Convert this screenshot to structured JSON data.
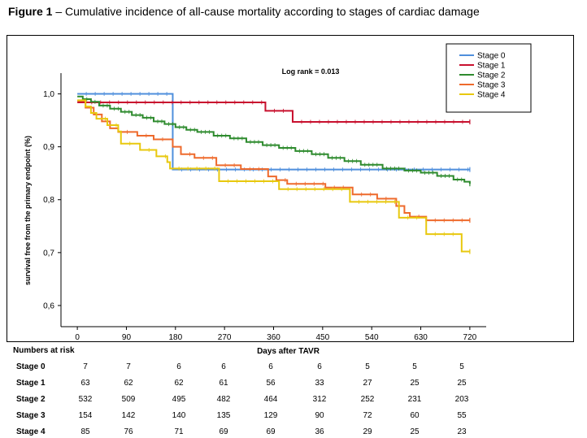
{
  "figure": {
    "label": "Figure 1",
    "caption": " – Cumulative incidence of all-cause mortality according to stages of cardiac damage"
  },
  "chart_data": {
    "type": "line",
    "title": "Log rank = 0.013",
    "xlabel": "Days after TAVR",
    "ylabel": "survival free from the primary endpoint (%)",
    "xlim": [
      -30,
      750
    ],
    "ylim": [
      0.56,
      1.03
    ],
    "x_ticks": [
      0,
      90,
      180,
      270,
      360,
      450,
      540,
      630,
      720
    ],
    "y_ticks": [
      0.6,
      0.7,
      0.8,
      0.9,
      1.0
    ],
    "y_tick_labels": [
      "0,6",
      "0,7",
      "0,8",
      "0,9",
      "1,0"
    ],
    "legend_position": "top-right",
    "series": [
      {
        "name": "Stage 0",
        "color": "#4f8fdc",
        "points": [
          [
            0,
            1.0
          ],
          [
            175,
            1.0
          ],
          [
            175,
            0.857
          ],
          [
            720,
            0.857
          ]
        ]
      },
      {
        "name": "Stage 1",
        "color": "#c8102e",
        "points": [
          [
            0,
            0.984
          ],
          [
            10,
            0.984
          ],
          [
            10,
            0.984
          ],
          [
            345,
            0.984
          ],
          [
            345,
            0.968
          ],
          [
            395,
            0.968
          ],
          [
            395,
            0.947
          ],
          [
            720,
            0.947
          ]
        ]
      },
      {
        "name": "Stage 2",
        "color": "#2e8b2e",
        "points": [
          [
            0,
            0.995
          ],
          [
            10,
            0.99
          ],
          [
            25,
            0.985
          ],
          [
            40,
            0.978
          ],
          [
            60,
            0.972
          ],
          [
            80,
            0.966
          ],
          [
            100,
            0.96
          ],
          [
            120,
            0.955
          ],
          [
            140,
            0.948
          ],
          [
            160,
            0.943
          ],
          [
            180,
            0.937
          ],
          [
            200,
            0.932
          ],
          [
            220,
            0.928
          ],
          [
            250,
            0.921
          ],
          [
            280,
            0.916
          ],
          [
            310,
            0.909
          ],
          [
            340,
            0.903
          ],
          [
            370,
            0.898
          ],
          [
            400,
            0.892
          ],
          [
            430,
            0.886
          ],
          [
            460,
            0.879
          ],
          [
            490,
            0.873
          ],
          [
            520,
            0.866
          ],
          [
            560,
            0.859
          ],
          [
            600,
            0.855
          ],
          [
            630,
            0.851
          ],
          [
            660,
            0.845
          ],
          [
            690,
            0.838
          ],
          [
            710,
            0.834
          ],
          [
            720,
            0.83
          ]
        ]
      },
      {
        "name": "Stage 3",
        "color": "#ee6a2c",
        "points": [
          [
            0,
            0.987
          ],
          [
            15,
            0.974
          ],
          [
            30,
            0.961
          ],
          [
            45,
            0.948
          ],
          [
            60,
            0.935
          ],
          [
            75,
            0.928
          ],
          [
            110,
            0.921
          ],
          [
            140,
            0.914
          ],
          [
            175,
            0.9
          ],
          [
            190,
            0.886
          ],
          [
            215,
            0.879
          ],
          [
            255,
            0.865
          ],
          [
            300,
            0.858
          ],
          [
            350,
            0.844
          ],
          [
            365,
            0.837
          ],
          [
            385,
            0.83
          ],
          [
            455,
            0.823
          ],
          [
            505,
            0.81
          ],
          [
            550,
            0.802
          ],
          [
            585,
            0.788
          ],
          [
            600,
            0.775
          ],
          [
            610,
            0.768
          ],
          [
            640,
            0.761
          ],
          [
            720,
            0.761
          ]
        ]
      },
      {
        "name": "Stage 4",
        "color": "#e8c80e",
        "points": [
          [
            0,
            0.988
          ],
          [
            15,
            0.976
          ],
          [
            25,
            0.964
          ],
          [
            35,
            0.953
          ],
          [
            55,
            0.941
          ],
          [
            75,
            0.929
          ],
          [
            80,
            0.906
          ],
          [
            115,
            0.894
          ],
          [
            145,
            0.882
          ],
          [
            165,
            0.871
          ],
          [
            170,
            0.859
          ],
          [
            260,
            0.859
          ],
          [
            260,
            0.835
          ],
          [
            370,
            0.835
          ],
          [
            370,
            0.82
          ],
          [
            500,
            0.82
          ],
          [
            500,
            0.796
          ],
          [
            590,
            0.796
          ],
          [
            590,
            0.766
          ],
          [
            640,
            0.766
          ],
          [
            640,
            0.735
          ],
          [
            705,
            0.735
          ],
          [
            705,
            0.702
          ],
          [
            720,
            0.702
          ]
        ]
      }
    ]
  },
  "risk_table": {
    "heading": "Numbers at risk",
    "timepoints": [
      "0",
      "90",
      "180",
      "270",
      "360",
      "450",
      "540",
      "630",
      "720"
    ],
    "rows": [
      {
        "label": "Stage 0",
        "values": [
          "7",
          "7",
          "6",
          "6",
          "6",
          "6",
          "5",
          "5",
          "5"
        ]
      },
      {
        "label": "Stage 1",
        "values": [
          "63",
          "62",
          "62",
          "61",
          "56",
          "33",
          "27",
          "25",
          "25"
        ]
      },
      {
        "label": "Stage 2",
        "values": [
          "532",
          "509",
          "495",
          "482",
          "464",
          "312",
          "252",
          "231",
          "203"
        ]
      },
      {
        "label": "Stage 3",
        "values": [
          "154",
          "142",
          "140",
          "135",
          "129",
          "90",
          "72",
          "60",
          "55"
        ]
      },
      {
        "label": "Stage 4",
        "values": [
          "85",
          "76",
          "71",
          "69",
          "69",
          "36",
          "29",
          "25",
          "23"
        ]
      }
    ]
  }
}
